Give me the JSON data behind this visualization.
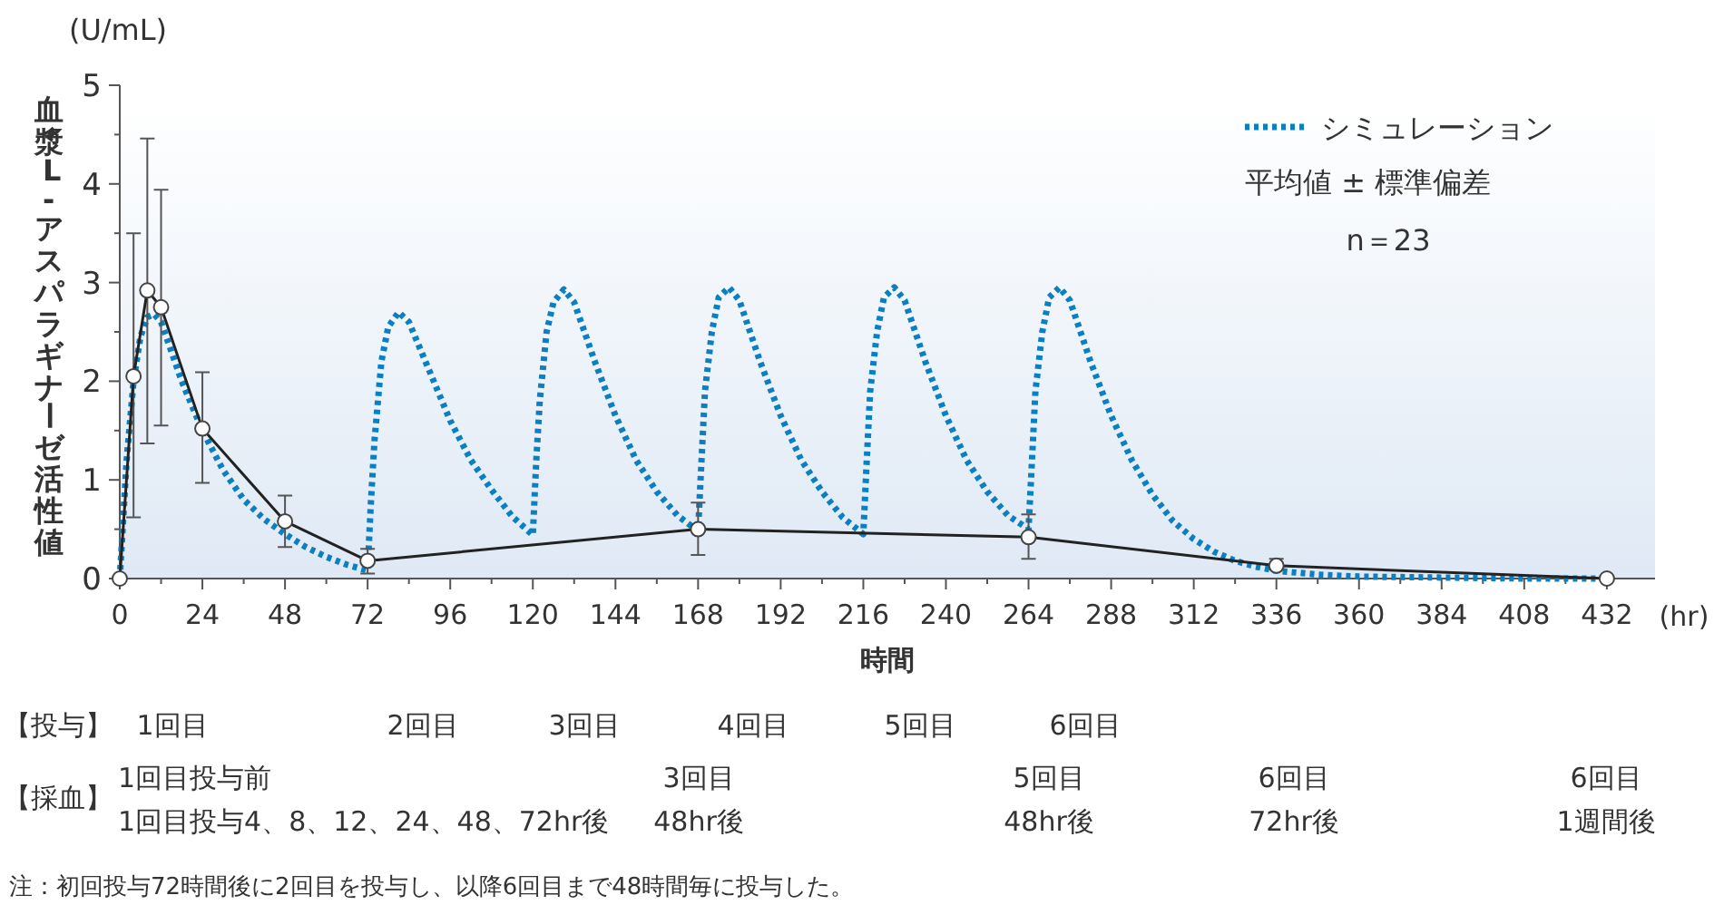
{
  "chart_data": {
    "type": "line",
    "xlabel": "時間",
    "ylabel": "血漿 L-アスパラギナーゼ活性値",
    "xlim": [
      0,
      446
    ],
    "xticks": [
      0,
      24,
      48,
      72,
      96,
      120,
      144,
      168,
      192,
      216,
      240,
      264,
      288,
      312,
      336,
      360,
      384,
      408,
      432
    ],
    "ylim": [
      0,
      5
    ],
    "yticks": [
      0,
      1,
      2,
      3,
      4,
      5
    ],
    "grid": false,
    "legend": "top right",
    "series": [
      {
        "name": "シミュレーション",
        "color": "#0a7fc2",
        "line_style": "dotted",
        "marker": "none",
        "x": [
          0,
          1,
          2,
          4,
          6,
          8,
          10,
          12,
          18,
          24,
          30,
          36,
          42,
          48,
          54,
          60,
          66,
          72,
          73,
          74,
          76,
          78,
          81,
          84,
          90,
          96,
          102,
          108,
          114,
          120,
          121,
          122,
          124,
          126,
          129,
          132,
          138,
          144,
          150,
          156,
          162,
          168,
          169,
          170,
          172,
          174,
          177,
          180,
          186,
          192,
          198,
          204,
          210,
          216,
          217,
          218,
          220,
          222,
          225,
          228,
          234,
          240,
          246,
          252,
          258,
          264,
          265,
          266,
          268,
          270,
          273,
          276,
          282,
          288,
          294,
          300,
          306,
          312,
          318,
          324,
          330,
          336,
          348,
          360,
          384,
          408,
          432
        ],
        "values": [
          0,
          0.6,
          1.2,
          2.0,
          2.45,
          2.65,
          2.68,
          2.6,
          2.0,
          1.5,
          1.1,
          0.8,
          0.6,
          0.45,
          0.32,
          0.22,
          0.14,
          0.08,
          0.8,
          1.4,
          2.2,
          2.55,
          2.7,
          2.6,
          2.1,
          1.6,
          1.2,
          0.9,
          0.63,
          0.44,
          1.2,
          1.8,
          2.5,
          2.8,
          2.93,
          2.8,
          2.2,
          1.65,
          1.2,
          0.88,
          0.64,
          0.48,
          1.2,
          1.9,
          2.5,
          2.85,
          2.95,
          2.82,
          2.2,
          1.65,
          1.2,
          0.88,
          0.62,
          0.45,
          1.2,
          1.9,
          2.5,
          2.85,
          2.95,
          2.82,
          2.2,
          1.65,
          1.2,
          0.88,
          0.64,
          0.5,
          1.2,
          1.9,
          2.5,
          2.85,
          2.95,
          2.82,
          2.2,
          1.65,
          1.2,
          0.85,
          0.58,
          0.4,
          0.27,
          0.18,
          0.12,
          0.08,
          0.04,
          0.02,
          0.01,
          0,
          0
        ]
      },
      {
        "color": "#222222",
        "line_style": "solid",
        "marker": "circle",
        "x": [
          0,
          4,
          8,
          12,
          24,
          48,
          72,
          168,
          264,
          336,
          432
        ],
        "values": [
          0,
          2.05,
          2.92,
          2.75,
          1.52,
          0.58,
          0.18,
          0.5,
          0.42,
          0.13,
          0
        ],
        "errors": [
          null,
          [
            0.62,
            3.5
          ],
          [
            1.37,
            4.46
          ],
          [
            1.55,
            3.94
          ],
          [
            0.97,
            2.09
          ],
          [
            0.32,
            0.84
          ],
          [
            0.05,
            0.3
          ],
          [
            0.24,
            0.77
          ],
          [
            0.2,
            0.65
          ],
          [
            0.09,
            0.2
          ],
          null
        ]
      }
    ],
    "annotations": [
      "(U/mL)",
      "(hr)",
      "平均値 ± 標準偏差",
      "n＝23",
      "【投与】",
      "1回目",
      "2回目",
      "3回目",
      "4回目",
      "5回目",
      "6回目",
      "【採血】",
      "1回目投与前",
      "1回目投与4、8、12、24、48、72hr後",
      "3回目",
      "48hr後",
      "5回目",
      "48hr後",
      "6回目",
      "72hr後",
      "6回目",
      "1週間後",
      "注：初回投与72時間後に2回目を投与し、以降6回目まで48時間毎に投与した。"
    ]
  }
}
